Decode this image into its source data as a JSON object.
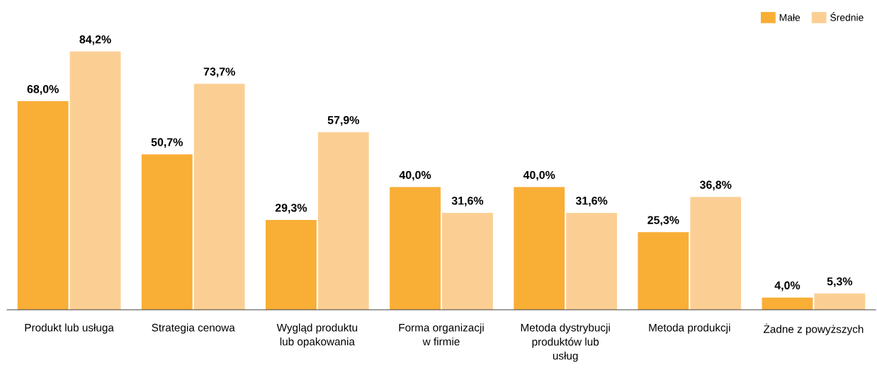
{
  "chart_data": {
    "type": "bar",
    "categories": [
      "Produkt lub usługa",
      "Strategia cenowa",
      "Wygląd produktu\nlub opakowania",
      "Forma organizacji\nw firmie",
      "Metoda dystrybucji\nproduktów lub\nusług",
      "Metoda produkcji",
      "Żadne z powyższych"
    ],
    "series": [
      {
        "name": "Małe",
        "color": "#f9ae36",
        "values": [
          68.0,
          50.7,
          29.3,
          40.0,
          40.0,
          25.3,
          4.0
        ],
        "value_labels": [
          "68,0%",
          "50,7%",
          "29,3%",
          "40,0%",
          "40,0%",
          "25,3%",
          "4,0%"
        ]
      },
      {
        "name": "Średnie",
        "color": "#fbcf94",
        "values": [
          84.2,
          73.7,
          57.9,
          31.6,
          31.6,
          36.8,
          5.3
        ],
        "value_labels": [
          "84,2%",
          "73,7%",
          "57,9%",
          "31,6%",
          "31,6%",
          "36,8%",
          "5,3%"
        ]
      }
    ],
    "legend": "top right"
  }
}
